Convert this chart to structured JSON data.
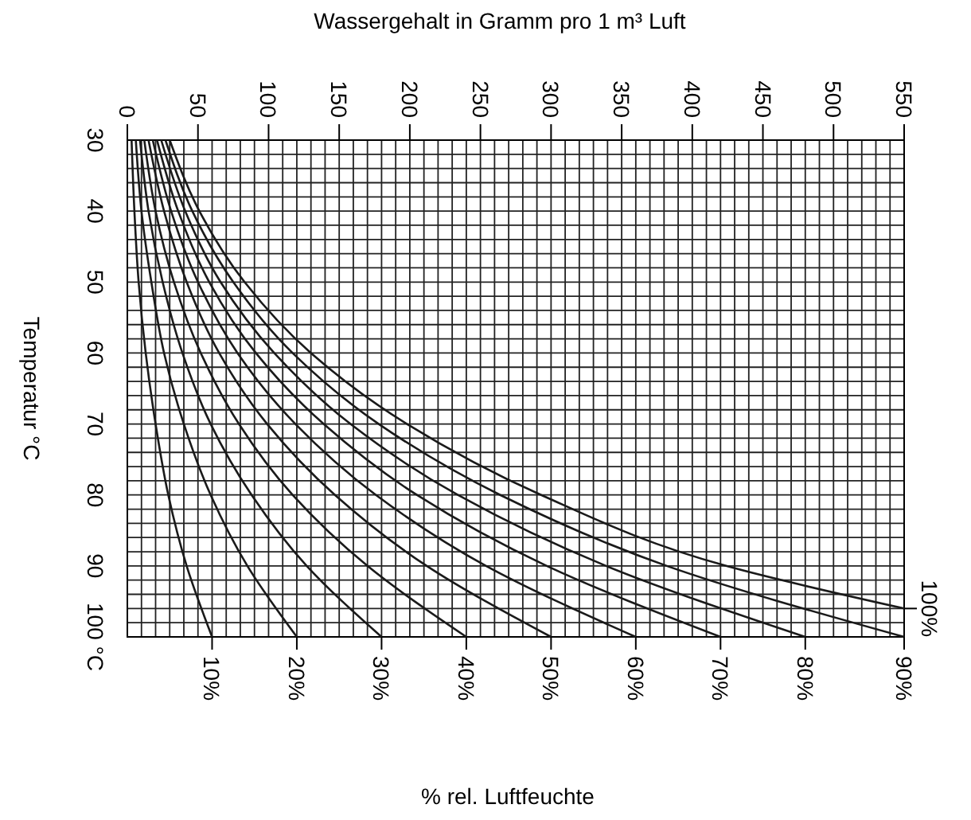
{
  "chart_data": {
    "type": "line",
    "xlabel": "Wassergehalt in Gramm pro 1 m³ Luft",
    "ylabel": "Temperatur °C",
    "legend_title": "% rel. Luftfeuchte",
    "xlim": [
      0,
      550
    ],
    "ylim": [
      100,
      30
    ],
    "xticks": [
      0,
      {
        "value": 10,
        "label": null
      },
      {
        "value": 20,
        "label": null
      },
      {
        "value": 30,
        "label": null
      },
      {
        "value": 40,
        "label": null
      },
      50,
      {
        "value": 60,
        "label": null
      },
      {
        "value": 70,
        "label": null
      },
      {
        "value": 80,
        "label": null
      },
      {
        "value": 90,
        "label": null
      },
      100,
      {
        "value": 110,
        "label": null
      },
      {
        "value": 120,
        "label": null
      },
      {
        "value": 130,
        "label": null
      },
      {
        "value": 140,
        "label": null
      },
      150,
      {
        "value": 160,
        "label": null
      },
      {
        "value": 170,
        "label": null
      },
      {
        "value": 180,
        "label": null
      },
      {
        "value": 190,
        "label": null
      },
      200,
      {
        "value": 210,
        "label": null
      },
      {
        "value": 220,
        "label": null
      },
      {
        "value": 230,
        "label": null
      },
      {
        "value": 240,
        "label": null
      },
      250,
      {
        "value": 260,
        "label": null
      },
      {
        "value": 270,
        "label": null
      },
      {
        "value": 280,
        "label": null
      },
      {
        "value": 290,
        "label": null
      },
      300,
      {
        "value": 310,
        "label": null
      },
      {
        "value": 320,
        "label": null
      },
      {
        "value": 330,
        "label": null
      },
      {
        "value": 340,
        "label": null
      },
      350,
      {
        "value": 360,
        "label": null
      },
      {
        "value": 370,
        "label": null
      },
      {
        "value": 380,
        "label": null
      },
      {
        "value": 390,
        "label": null
      },
      400,
      {
        "value": 410,
        "label": null
      },
      {
        "value": 420,
        "label": null
      },
      {
        "value": 430,
        "label": null
      },
      {
        "value": 440,
        "label": null
      },
      450,
      {
        "value": 460,
        "label": null
      },
      {
        "value": 470,
        "label": null
      },
      {
        "value": 480,
        "label": null
      },
      {
        "value": 490,
        "label": null
      },
      500,
      {
        "value": 510,
        "label": null
      },
      {
        "value": 520,
        "label": null
      },
      {
        "value": 530,
        "label": null
      },
      {
        "value": 540,
        "label": null
      },
      550
    ],
    "yticks": [
      30,
      {
        "value": 32,
        "label": null
      },
      {
        "value": 34,
        "label": null
      },
      {
        "value": 36,
        "label": null
      },
      {
        "value": 38,
        "label": null
      },
      40,
      {
        "value": 42,
        "label": null
      },
      {
        "value": 44,
        "label": null
      },
      {
        "value": 46,
        "label": null
      },
      {
        "value": 48,
        "label": null
      },
      50,
      {
        "value": 52,
        "label": null
      },
      {
        "value": 54,
        "label": null
      },
      {
        "value": 56,
        "label": null
      },
      {
        "value": 58,
        "label": null
      },
      60,
      {
        "value": 62,
        "label": null
      },
      {
        "value": 64,
        "label": null
      },
      {
        "value": 66,
        "label": null
      },
      {
        "value": 68,
        "label": null
      },
      70,
      {
        "value": 72,
        "label": null
      },
      {
        "value": 74,
        "label": null
      },
      {
        "value": 76,
        "label": null
      },
      {
        "value": 78,
        "label": null
      },
      80,
      {
        "value": 82,
        "label": null
      },
      {
        "value": 84,
        "label": null
      },
      {
        "value": 86,
        "label": null
      },
      {
        "value": 88,
        "label": null
      },
      90,
      {
        "value": 92,
        "label": null
      },
      {
        "value": 94,
        "label": null
      },
      {
        "value": 96,
        "label": null
      },
      {
        "value": 98,
        "label": null
      },
      {
        "value": 100,
        "label": "100 °C"
      }
    ],
    "grid": true,
    "marker": "none",
    "line_style": "solid",
    "series": [
      {
        "name": "10%",
        "color": "#1a1a1a",
        "x": [
          3,
          5,
          8,
          13,
          20,
          29,
          42,
          60
        ],
        "values": [
          30,
          40,
          50,
          60,
          70,
          80,
          90,
          100
        ]
      },
      {
        "name": "20%",
        "color": "#1a1a1a",
        "x": [
          6,
          10,
          17,
          26,
          40,
          59,
          85,
          120
        ],
        "values": [
          30,
          40,
          50,
          60,
          70,
          80,
          90,
          100
        ]
      },
      {
        "name": "30%",
        "color": "#1a1a1a",
        "x": [
          9,
          15,
          25,
          39,
          59,
          88,
          127,
          180
        ],
        "values": [
          30,
          40,
          50,
          60,
          70,
          80,
          90,
          100
        ]
      },
      {
        "name": "40%",
        "color": "#1a1a1a",
        "x": [
          12,
          20,
          33,
          52,
          79,
          117,
          170,
          240
        ],
        "values": [
          30,
          40,
          50,
          60,
          70,
          80,
          90,
          100
        ]
      },
      {
        "name": "50%",
        "color": "#1a1a1a",
        "x": [
          15,
          26,
          42,
          65,
          99,
          147,
          212,
          300
        ],
        "values": [
          30,
          40,
          50,
          60,
          70,
          80,
          90,
          100
        ]
      },
      {
        "name": "60%",
        "color": "#1a1a1a",
        "x": [
          18,
          31,
          50,
          78,
          119,
          176,
          254,
          360
        ],
        "values": [
          30,
          40,
          50,
          60,
          70,
          80,
          90,
          100
        ]
      },
      {
        "name": "70%",
        "color": "#1a1a1a",
        "x": [
          21,
          36,
          58,
          91,
          139,
          205,
          297,
          420
        ],
        "values": [
          30,
          40,
          50,
          60,
          70,
          80,
          90,
          100
        ]
      },
      {
        "name": "80%",
        "color": "#1a1a1a",
        "x": [
          24,
          41,
          66,
          104,
          158,
          234,
          339,
          480
        ],
        "values": [
          30,
          40,
          50,
          60,
          70,
          80,
          90,
          100
        ]
      },
      {
        "name": "90%",
        "color": "#1a1a1a",
        "x": [
          27,
          46,
          75,
          117,
          178,
          264,
          382,
          550
        ],
        "values": [
          30,
          40,
          50,
          60,
          70,
          80,
          90,
          100
        ]
      },
      {
        "name": "100%",
        "color": "#1a1a1a",
        "x": [
          30,
          51,
          83,
          130,
          198,
          293,
          424,
          550
        ],
        "values": [
          30,
          40,
          50,
          60,
          70,
          80,
          90,
          96
        ]
      }
    ]
  }
}
